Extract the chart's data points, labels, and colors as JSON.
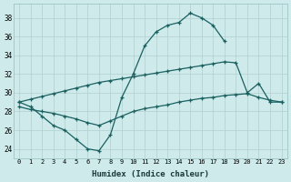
{
  "xlabel": "Humidex (Indice chaleur)",
  "ylabel": "",
  "bg_color": "#ceeaea",
  "grid_color": "#b0d0d0",
  "line_color": "#1a6060",
  "xlim": [
    -0.5,
    23.5
  ],
  "ylim": [
    23.0,
    39.5
  ],
  "yticks": [
    24,
    26,
    28,
    30,
    32,
    34,
    36,
    38
  ],
  "xticks": [
    0,
    1,
    2,
    3,
    4,
    5,
    6,
    7,
    8,
    9,
    10,
    11,
    12,
    13,
    14,
    15,
    16,
    17,
    18,
    19,
    20,
    21,
    22,
    23
  ],
  "line1_x": [
    0,
    1,
    2,
    3,
    4,
    5,
    6,
    7,
    8,
    9,
    10,
    11,
    12,
    13,
    14,
    15,
    16,
    17,
    18,
    19,
    20,
    21,
    22,
    23
  ],
  "line1_y": [
    29.0,
    28.5,
    27.5,
    26.5,
    26.0,
    25.0,
    24.0,
    23.8,
    25.5,
    29.5,
    32.0,
    35.0,
    36.5,
    37.2,
    37.5,
    38.5,
    38.0,
    37.2,
    35.5,
    null,
    null,
    null,
    null,
    null
  ],
  "line2_x": [
    0,
    1,
    2,
    3,
    4,
    5,
    6,
    7,
    8,
    9,
    10,
    11,
    12,
    13,
    14,
    15,
    16,
    17,
    18,
    19,
    20,
    21,
    22,
    23
  ],
  "line2_y": [
    29.0,
    29.3,
    29.6,
    29.9,
    30.2,
    30.5,
    30.8,
    31.1,
    31.3,
    31.5,
    31.7,
    31.9,
    32.1,
    32.3,
    32.5,
    32.7,
    32.9,
    33.1,
    33.3,
    33.2,
    30.0,
    31.0,
    29.0,
    29.0
  ],
  "line3_x": [
    0,
    1,
    2,
    3,
    4,
    5,
    6,
    7,
    8,
    9,
    10,
    11,
    12,
    13,
    14,
    15,
    16,
    17,
    18,
    19,
    20,
    21,
    22,
    23
  ],
  "line3_y": [
    28.5,
    28.2,
    28.0,
    27.8,
    27.5,
    27.2,
    26.8,
    26.5,
    27.0,
    27.5,
    28.0,
    28.3,
    28.5,
    28.7,
    29.0,
    29.2,
    29.4,
    29.5,
    29.7,
    29.8,
    29.9,
    29.5,
    29.2,
    29.0
  ]
}
